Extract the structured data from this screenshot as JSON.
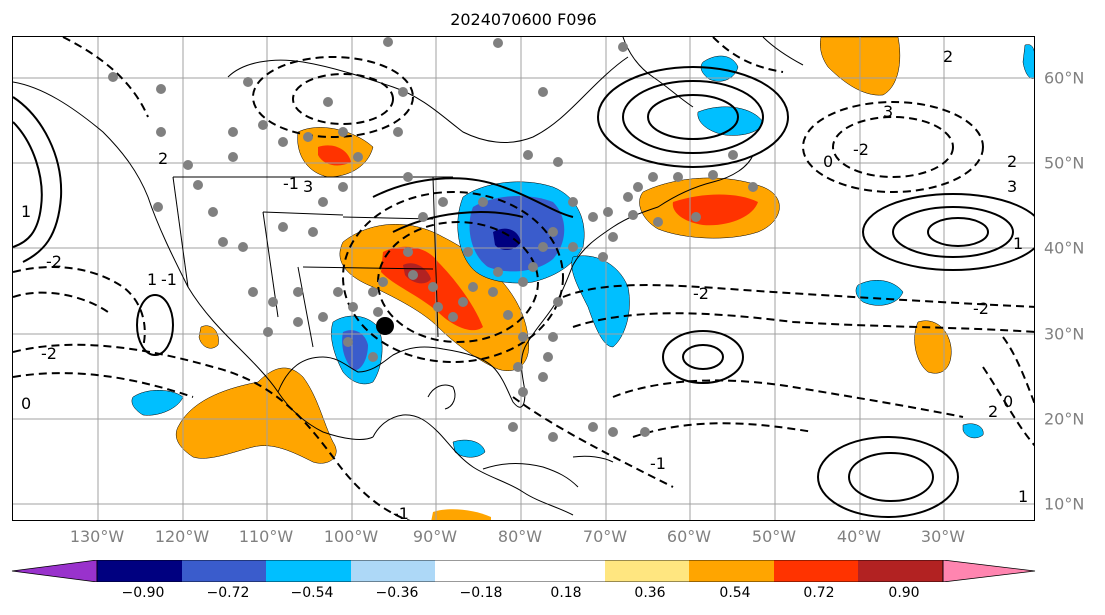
{
  "title": "2024070600 F096",
  "map": {
    "lon_labels": [
      "130°W",
      "120°W",
      "110°W",
      "100°W",
      "90°W",
      "80°W",
      "70°W",
      "60°W",
      "50°W",
      "40°W",
      "30°W"
    ],
    "lat_labels": [
      "60°N",
      "50°N",
      "40°N",
      "30°N",
      "20°N",
      "10°N"
    ],
    "contour_labels": [
      "-2",
      "-1",
      "0",
      "1",
      "2",
      "3",
      "-2",
      "-1",
      "1",
      "2",
      "3",
      "-2",
      "0",
      "-1",
      "2",
      "-2",
      "1",
      "0",
      "-1",
      "-2",
      "3",
      "2",
      "1"
    ],
    "gridline_color": "#a0a0a0",
    "label_color": "#808080"
  },
  "colorbar": {
    "ticks": [
      "−0.90",
      "−0.72",
      "−0.54",
      "−0.36",
      "−0.18",
      "0.18",
      "0.36",
      "0.54",
      "0.72",
      "0.90"
    ],
    "colors": [
      "#9932cc",
      "#000080",
      "#3a5ccc",
      "#00bfff",
      "#add8f7",
      "#ffffff",
      "#ffe680",
      "#ffa500",
      "#ff3300",
      "#b22222",
      "#ff85b0"
    ]
  }
}
